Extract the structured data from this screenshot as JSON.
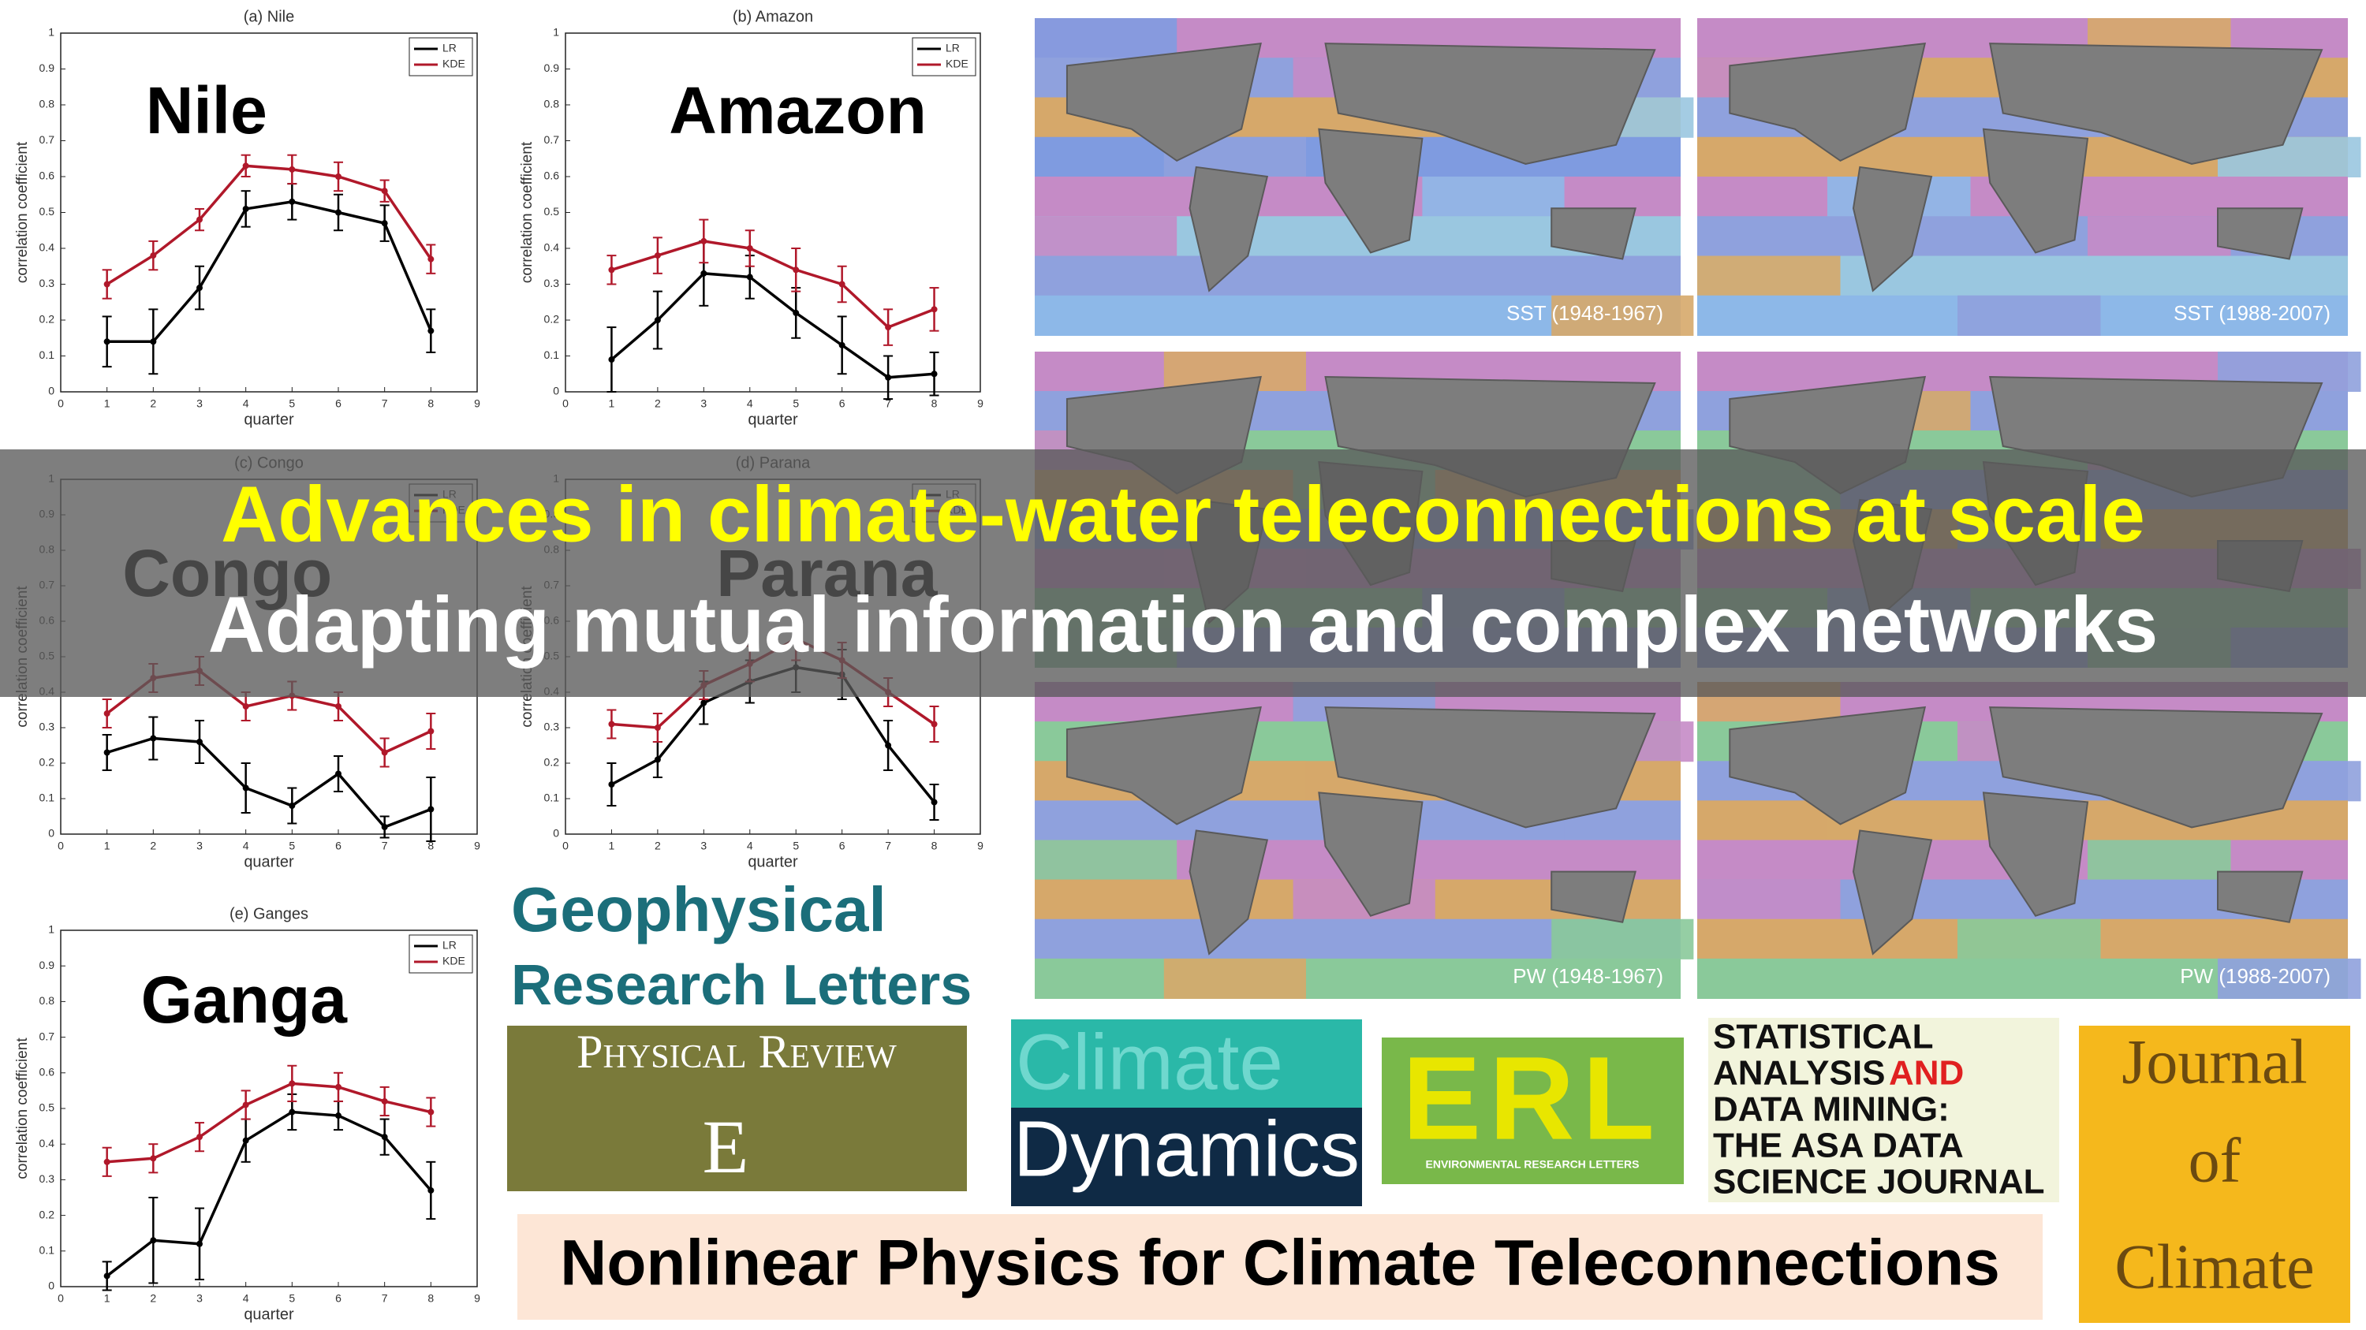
{
  "chart_data": [
    {
      "type": "line",
      "title": "(a) Nile",
      "annotation": "Nile",
      "xlabel": "quarter",
      "ylabel": "correlation coefficient",
      "x": [
        1,
        2,
        3,
        4,
        5,
        6,
        7,
        8
      ],
      "xlim": [
        0,
        9
      ],
      "xticks": [
        0,
        1,
        2,
        3,
        4,
        5,
        6,
        7,
        8,
        9
      ],
      "ylim": [
        0,
        1
      ],
      "yticks": [
        0,
        0.1,
        0.2,
        0.3,
        0.4,
        0.5,
        0.6,
        0.7,
        0.8,
        0.9,
        1
      ],
      "legend": "upper right",
      "series": [
        {
          "name": "LR",
          "color": "#000000",
          "values": [
            0.14,
            0.14,
            0.29,
            0.51,
            0.53,
            0.5,
            0.47,
            0.17
          ],
          "errors": [
            0.07,
            0.09,
            0.06,
            0.05,
            0.05,
            0.05,
            0.05,
            0.06
          ]
        },
        {
          "name": "KDE",
          "color": "#b0182a",
          "values": [
            0.3,
            0.38,
            0.48,
            0.63,
            0.62,
            0.6,
            0.56,
            0.37
          ],
          "errors": [
            0.04,
            0.04,
            0.03,
            0.03,
            0.04,
            0.04,
            0.03,
            0.04
          ]
        }
      ]
    },
    {
      "type": "line",
      "title": "(b) Amazon",
      "annotation": "Amazon",
      "xlabel": "quarter",
      "ylabel": "correlation coefficient",
      "x": [
        1,
        2,
        3,
        4,
        5,
        6,
        7,
        8
      ],
      "xlim": [
        0,
        9
      ],
      "xticks": [
        0,
        1,
        2,
        3,
        4,
        5,
        6,
        7,
        8,
        9
      ],
      "ylim": [
        0,
        1
      ],
      "yticks": [
        0,
        0.1,
        0.2,
        0.3,
        0.4,
        0.5,
        0.6,
        0.7,
        0.8,
        0.9,
        1
      ],
      "legend": "upper right",
      "series": [
        {
          "name": "LR",
          "color": "#000000",
          "values": [
            0.09,
            0.2,
            0.33,
            0.32,
            0.22,
            0.13,
            0.04,
            0.05
          ],
          "errors": [
            0.09,
            0.08,
            0.09,
            0.06,
            0.07,
            0.08,
            0.06,
            0.06
          ]
        },
        {
          "name": "KDE",
          "color": "#b0182a",
          "values": [
            0.34,
            0.38,
            0.42,
            0.4,
            0.34,
            0.3,
            0.18,
            0.23
          ],
          "errors": [
            0.04,
            0.05,
            0.06,
            0.05,
            0.06,
            0.05,
            0.05,
            0.06
          ]
        }
      ]
    },
    {
      "type": "line",
      "title": "(c) Congo",
      "annotation": "Congo",
      "xlabel": "quarter",
      "ylabel": "correlation coefficient",
      "x": [
        1,
        2,
        3,
        4,
        5,
        6,
        7,
        8
      ],
      "xlim": [
        0,
        9
      ],
      "xticks": [
        0,
        1,
        2,
        3,
        4,
        5,
        6,
        7,
        8,
        9
      ],
      "ylim": [
        0,
        1
      ],
      "yticks": [
        0,
        0.1,
        0.2,
        0.3,
        0.4,
        0.5,
        0.6,
        0.7,
        0.8,
        0.9,
        1
      ],
      "legend": "upper right",
      "series": [
        {
          "name": "LR",
          "color": "#000000",
          "values": [
            0.23,
            0.27,
            0.26,
            0.13,
            0.08,
            0.17,
            0.02,
            0.07
          ],
          "errors": [
            0.05,
            0.06,
            0.06,
            0.07,
            0.05,
            0.05,
            0.03,
            0.09
          ]
        },
        {
          "name": "KDE",
          "color": "#b0182a",
          "values": [
            0.34,
            0.44,
            0.46,
            0.36,
            0.39,
            0.36,
            0.23,
            0.29
          ],
          "errors": [
            0.04,
            0.04,
            0.04,
            0.04,
            0.04,
            0.04,
            0.04,
            0.05
          ]
        }
      ]
    },
    {
      "type": "line",
      "title": "(d) Parana",
      "annotation": "Parana",
      "xlabel": "quarter",
      "ylabel": "correlation coefficient",
      "x": [
        1,
        2,
        3,
        4,
        5,
        6,
        7,
        8
      ],
      "xlim": [
        0,
        9
      ],
      "xticks": [
        0,
        1,
        2,
        3,
        4,
        5,
        6,
        7,
        8,
        9
      ],
      "ylim": [
        0,
        1
      ],
      "yticks": [
        0,
        0.1,
        0.2,
        0.3,
        0.4,
        0.5,
        0.6,
        0.7,
        0.8,
        0.9,
        1
      ],
      "legend": "upper right",
      "series": [
        {
          "name": "LR",
          "color": "#000000",
          "values": [
            0.14,
            0.21,
            0.37,
            0.43,
            0.47,
            0.45,
            0.25,
            0.09
          ],
          "errors": [
            0.06,
            0.05,
            0.06,
            0.06,
            0.07,
            0.07,
            0.07,
            0.05
          ]
        },
        {
          "name": "KDE",
          "color": "#b0182a",
          "values": [
            0.31,
            0.3,
            0.42,
            0.48,
            0.55,
            0.49,
            0.4,
            0.31
          ],
          "errors": [
            0.04,
            0.04,
            0.04,
            0.05,
            0.06,
            0.05,
            0.04,
            0.05
          ]
        }
      ]
    },
    {
      "type": "line",
      "title": "(e) Ganges",
      "annotation": "Ganga",
      "xlabel": "quarter",
      "ylabel": "correlation coefficient",
      "x": [
        1,
        2,
        3,
        4,
        5,
        6,
        7,
        8
      ],
      "xlim": [
        0,
        9
      ],
      "xticks": [
        0,
        1,
        2,
        3,
        4,
        5,
        6,
        7,
        8,
        9
      ],
      "ylim": [
        0,
        1
      ],
      "yticks": [
        0,
        0.1,
        0.2,
        0.3,
        0.4,
        0.5,
        0.6,
        0.7,
        0.8,
        0.9,
        1
      ],
      "legend": "upper right",
      "series": [
        {
          "name": "LR",
          "color": "#000000",
          "values": [
            0.03,
            0.13,
            0.12,
            0.41,
            0.49,
            0.48,
            0.42,
            0.27
          ],
          "errors": [
            0.04,
            0.12,
            0.1,
            0.06,
            0.05,
            0.04,
            0.05,
            0.08
          ]
        },
        {
          "name": "KDE",
          "color": "#b0182a",
          "values": [
            0.35,
            0.36,
            0.42,
            0.51,
            0.57,
            0.56,
            0.52,
            0.49
          ],
          "errors": [
            0.04,
            0.04,
            0.04,
            0.04,
            0.05,
            0.04,
            0.04,
            0.04
          ]
        }
      ]
    }
  ],
  "maps": [
    "SST (1948-1967)",
    "SST (1988-2007)",
    "PW (1948-1967)",
    "PW (1988-2007)"
  ],
  "banner": {
    "title": "Advances in climate-water teleconnections at scale",
    "subtitle": "Adapting mutual information and complex networks"
  },
  "logos": {
    "grl": [
      "Geophysical",
      "Research Letters"
    ],
    "pre": [
      "Physical Review",
      "E"
    ],
    "climate_dynamics": [
      "Climate",
      "Dynamics"
    ],
    "erl": [
      "ERL",
      "ENVIRONMENTAL RESEARCH LETTERS"
    ],
    "sadm": [
      "STATISTICAL",
      "ANALYSIS",
      "AND",
      "DATA MINING:",
      "THE ASA DATA",
      "SCIENCE JOURNAL"
    ],
    "joc": [
      "Journal",
      "of",
      "Climate"
    ]
  },
  "footer": "Nonlinear Physics for Climate Teleconnections"
}
